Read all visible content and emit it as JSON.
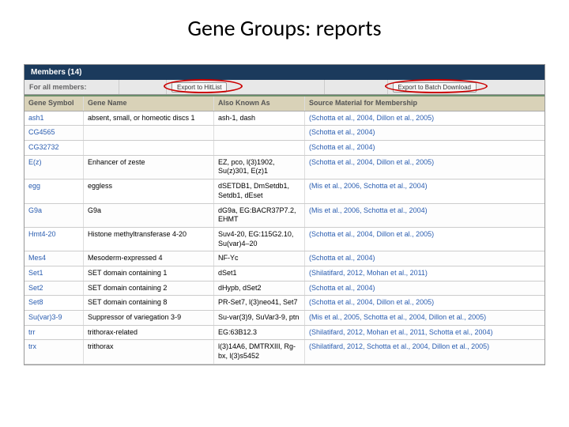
{
  "slide": {
    "title": "Gene Groups: reports"
  },
  "members_header": "Members (14)",
  "for_all": {
    "label": "For all members:",
    "export_hitlist": "Export to HitList",
    "export_batch": "Export to Batch Download"
  },
  "columns": {
    "symbol": "Gene Symbol",
    "name": "Gene Name",
    "aka": "Also Known As",
    "source": "Source Material for Membership"
  },
  "rows": [
    {
      "symbol": "ash1",
      "name": "absent, small, or homeotic discs 1",
      "aka": "ash-1, dash",
      "source": "(Schotta et al., 2004, Dillon et al., 2005)"
    },
    {
      "symbol": "CG4565",
      "name": "",
      "aka": "",
      "source": "(Schotta et al., 2004)"
    },
    {
      "symbol": "CG32732",
      "name": "",
      "aka": "",
      "source": "(Schotta et al., 2004)"
    },
    {
      "symbol": "E(z)",
      "name": "Enhancer of zeste",
      "aka": "EZ, pco, l(3)1902, Su(z)301, E(z)1",
      "source": "(Schotta et al., 2004, Dillon et al., 2005)"
    },
    {
      "symbol": "egg",
      "name": "eggless",
      "aka": "dSETDB1, DmSetdb1, Setdb1, dEset",
      "source": "(Mis et al., 2006, Schotta et al., 2004)"
    },
    {
      "symbol": "G9a",
      "name": "G9a",
      "aka": "dG9a, EG:BACR37P7.2, EHMT",
      "source": "(Mis et al., 2006, Schotta et al., 2004)"
    },
    {
      "symbol": "Hmt4-20",
      "name": "Histone methyltransferase 4-20",
      "aka": "Suv4-20, EG:115G2.10, Su(var)4–20",
      "source": "(Schotta et al., 2004, Dillon et al., 2005)"
    },
    {
      "symbol": "Mes4",
      "name": "Mesoderm-expressed 4",
      "aka": "NF-Yc",
      "source": "(Schotta et al., 2004)"
    },
    {
      "symbol": "Set1",
      "name": "SET domain containing 1",
      "aka": "dSet1",
      "source": "(Shilatifard, 2012, Mohan et al., 2011)"
    },
    {
      "symbol": "Set2",
      "name": "SET domain containing 2",
      "aka": "dHypb, dSet2",
      "source": "(Schotta et al., 2004)"
    },
    {
      "symbol": "Set8",
      "name": "SET domain containing 8",
      "aka": "PR-Set7, l(3)neo41, Set7",
      "source": "(Schotta et al., 2004, Dillon et al., 2005)"
    },
    {
      "symbol": "Su(var)3-9",
      "name": "Suppressor of variegation 3-9",
      "aka": "Su-var(3)9, SuVar3-9, ptn",
      "source": "(Mis et al., 2005, Schotta et al., 2004, Dillon et al., 2005)"
    },
    {
      "symbol": "trr",
      "name": "trithorax-related",
      "aka": "EG:63B12.3",
      "source": "(Shilatifard, 2012, Mohan et al., 2011, Schotta et al., 2004)"
    },
    {
      "symbol": "trx",
      "name": "trithorax",
      "aka": "l(3)14A6, DMTRXIII, Rg-bx, l(3)s5452",
      "source": "(Shilatifard, 2012, Schotta et al., 2004, Dillon et al., 2005)"
    }
  ]
}
